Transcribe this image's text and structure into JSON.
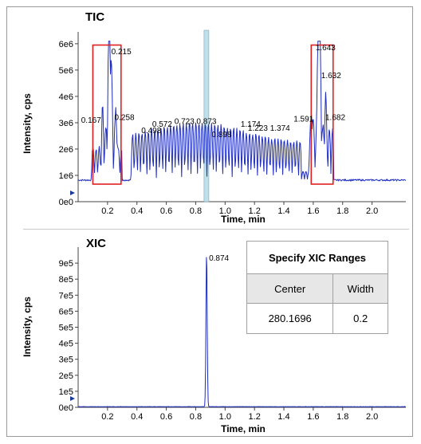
{
  "tic": {
    "title": "TIC",
    "ylabel": "Intensity, cps",
    "xlabel": "Time, min",
    "y_ticks": [
      "0e0",
      "1e6",
      "2e6",
      "3e6",
      "4e6",
      "5e6",
      "6e6"
    ],
    "x_ticks": [
      "0.2",
      "0.4",
      "0.6",
      "0.8",
      "1.0",
      "1.2",
      "1.4",
      "1.6",
      "1.8",
      "2.0"
    ],
    "peak_labels": [
      {
        "t": 0.167,
        "text": "0.167",
        "y": 3000000
      },
      {
        "t": 0.215,
        "text": "0.215",
        "y": 5600000
      },
      {
        "t": 0.258,
        "text": "0.258",
        "y": 3100000
      },
      {
        "t": 0.498,
        "text": "0.498",
        "y": 2600000
      },
      {
        "t": 0.572,
        "text": "0.572",
        "y": 2850000
      },
      {
        "t": 0.723,
        "text": "0.723",
        "y": 2950000
      },
      {
        "t": 0.873,
        "text": "0.873",
        "y": 2950000
      },
      {
        "t": 0.898,
        "text": "0.898",
        "y": 2450000
      },
      {
        "t": 1.174,
        "text": "1.174",
        "y": 2850000
      },
      {
        "t": 1.223,
        "text": "1.223",
        "y": 2700000
      },
      {
        "t": 1.374,
        "text": "1.374",
        "y": 2700000
      },
      {
        "t": 1.591,
        "text": "1.591",
        "y": 3050000
      },
      {
        "t": 1.643,
        "text": "1.643",
        "y": 5750000
      },
      {
        "t": 1.632,
        "text": "1.632",
        "y": 4700000
      },
      {
        "t": 1.682,
        "text": "1.682",
        "y": 3100000
      }
    ],
    "highlight_time": 0.873,
    "boxes": [
      {
        "t_start": 0.1,
        "t_end": 0.292,
        "y_top": 5950000
      },
      {
        "t_start": 1.586,
        "t_end": 1.735,
        "y_top": 5950000
      }
    ]
  },
  "xic": {
    "title": "XIC",
    "ylabel": "Intensity, cps",
    "xlabel": "Time, min",
    "y_ticks": [
      "0e0",
      "1e5",
      "2e5",
      "3e5",
      "4e5",
      "5e5",
      "6e5",
      "7e5",
      "8e5",
      "9e5"
    ],
    "x_ticks": [
      "0.2",
      "0.4",
      "0.6",
      "0.8",
      "1.0",
      "1.2",
      "1.4",
      "1.6",
      "1.8",
      "2.0"
    ],
    "peak_label": "0.874",
    "peak_time": 0.874,
    "peak_value": 960000
  },
  "ranges_table": {
    "title": "Specify XIC Ranges",
    "col_center": "Center",
    "col_width": "Width",
    "center_value": "280.1696",
    "width_value": "0.2"
  },
  "colors": {
    "trace": "#1f2dbf",
    "box": "#e02020",
    "highlight": "#bfe0ea",
    "arrow": "#1a3a9a"
  }
}
